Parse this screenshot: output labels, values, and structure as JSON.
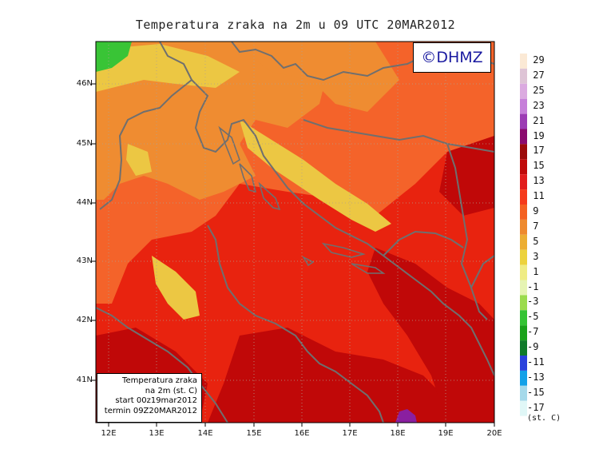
{
  "title": "Temperatura zraka na 2m u 09 UTC 20MAR2012",
  "brand": "©DHMZ",
  "info_box": {
    "line1": "Temperatura zraka",
    "line2": "na 2m (st. C)",
    "line3": "start 00z19mar2012",
    "line4": "termin 09Z20MAR2012"
  },
  "latitude_labels": [
    "46N",
    "45N",
    "44N",
    "43N",
    "42N",
    "41N"
  ],
  "longitude_labels": [
    "12E",
    "13E",
    "14E",
    "15E",
    "16E",
    "17E",
    "18E",
    "19E",
    "20E"
  ],
  "colorbar": {
    "unit": "(st. C)",
    "labels": [
      "29",
      "27",
      "25",
      "23",
      "21",
      "19",
      "17",
      "15",
      "13",
      "11",
      "9",
      "7",
      "5",
      "3",
      "1",
      "-1",
      "-3",
      "-5",
      "-7",
      "-9",
      "-11",
      "-13",
      "-15",
      "-17"
    ],
    "colors": [
      "#fbe9d5",
      "#dec4d6",
      "#dbaae0",
      "#c67fd9",
      "#9c3cb4",
      "#8b0a6e",
      "#9c0a0a",
      "#c00a0a",
      "#e21d1d",
      "#f53a1b",
      "#f46122",
      "#ee8a2e",
      "#ecae33",
      "#ecd23d",
      "#efec84",
      "#e6f4b3",
      "#9bdb4d",
      "#34c334",
      "#19a119",
      "#107a2a",
      "#2a41dc",
      "#13a1e8",
      "#a5d9ea",
      "#e0f7f7"
    ]
  },
  "map": {
    "region": "Adriatic",
    "grid_lines": "dotted",
    "colors": {
      "warm_bg": "#e8230f",
      "orange": "#f4632a",
      "light_orange": "#ef8c31",
      "yellow": "#ecc743",
      "dark_red": "#c00808",
      "green": "#39c436",
      "purple": "#8a1fa0",
      "coast": "#6f6f6f"
    }
  }
}
